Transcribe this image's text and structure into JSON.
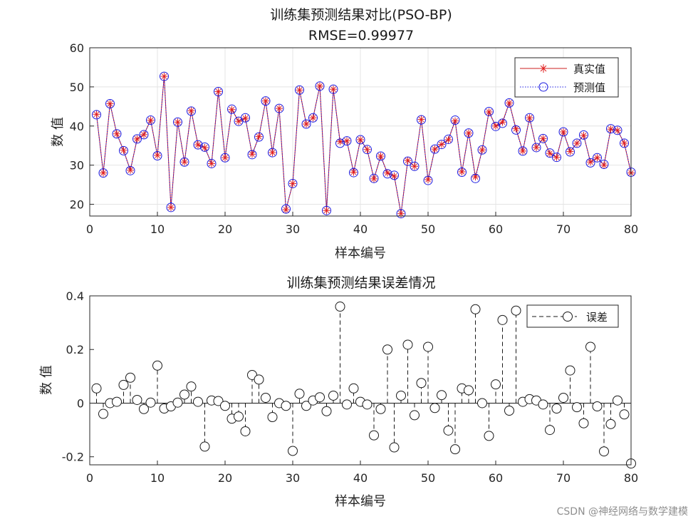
{
  "chart_data": [
    {
      "type": "line",
      "title": "训练集预测结果对比(PSO-BP)",
      "subtitle": "RMSE=0.99977",
      "xlabel": "样本编号",
      "ylabel": "数 值",
      "xlim": [
        0,
        80
      ],
      "ylim": [
        17,
        60
      ],
      "xticks": [
        "0",
        "10",
        "20",
        "30",
        "40",
        "50",
        "60",
        "70",
        "80"
      ],
      "yticks": [
        "20",
        "30",
        "40",
        "50",
        "60"
      ],
      "grid": true,
      "legend_position": "top-right",
      "x": [
        1,
        2,
        3,
        4,
        5,
        6,
        7,
        8,
        9,
        10,
        11,
        12,
        13,
        14,
        15,
        16,
        17,
        18,
        19,
        20,
        21,
        22,
        23,
        24,
        25,
        26,
        27,
        28,
        29,
        30,
        31,
        32,
        33,
        34,
        35,
        36,
        37,
        38,
        39,
        40,
        41,
        42,
        43,
        44,
        45,
        46,
        47,
        48,
        49,
        50,
        51,
        52,
        53,
        54,
        55,
        56,
        57,
        58,
        59,
        60,
        61,
        62,
        63,
        64,
        65,
        66,
        67,
        68,
        69,
        70,
        71,
        72,
        73,
        74,
        75,
        76,
        77,
        78,
        79,
        80
      ],
      "series": [
        {
          "name": "真实值",
          "color": "#e02020",
          "values": [
            43.0,
            28.0,
            45.7,
            38.0,
            33.8,
            28.7,
            36.7,
            37.8,
            41.5,
            32.5,
            52.7,
            19.2,
            41.0,
            30.8,
            43.9,
            35.2,
            34.5,
            30.4,
            48.8,
            31.9,
            44.2,
            41.2,
            42.0,
            32.8,
            37.3,
            46.4,
            33.2,
            44.5,
            18.6,
            25.3,
            49.2,
            40.5,
            42.1,
            50.2,
            18.4,
            49.4,
            36.0,
            36.2,
            28.2,
            36.5,
            34.0,
            26.5,
            32.3,
            28.0,
            27.2,
            17.6,
            31.2,
            29.7,
            41.7,
            26.3,
            34.1,
            35.3,
            36.5,
            41.3,
            28.3,
            38.2,
            27.0,
            33.9,
            43.6,
            40.0,
            41.0,
            45.9,
            39.3,
            33.6,
            42.1,
            34.5,
            36.8,
            33.0,
            32.0,
            38.5,
            33.5,
            35.6,
            37.6,
            30.8,
            31.9,
            30.0,
            39.2,
            38.9,
            35.6,
            28.0
          ]
        },
        {
          "name": "预测值",
          "color": "#1a1ae0",
          "values": [
            42.9,
            28.0,
            45.7,
            38.0,
            33.7,
            28.6,
            36.7,
            37.8,
            41.5,
            32.4,
            52.7,
            19.2,
            41.0,
            30.8,
            43.8,
            35.2,
            34.6,
            30.4,
            48.8,
            31.9,
            44.3,
            41.2,
            42.1,
            32.7,
            37.2,
            46.4,
            33.2,
            44.5,
            18.8,
            25.3,
            49.2,
            40.5,
            42.1,
            50.2,
            18.4,
            49.4,
            35.6,
            36.2,
            28.1,
            36.5,
            34.0,
            26.6,
            32.3,
            27.8,
            27.4,
            17.6,
            31.0,
            29.7,
            41.6,
            26.1,
            34.1,
            35.3,
            36.6,
            41.5,
            28.2,
            38.2,
            26.6,
            33.9,
            43.7,
            39.9,
            40.7,
            45.9,
            39.0,
            33.6,
            42.1,
            34.5,
            36.8,
            33.1,
            32.0,
            38.5,
            33.4,
            35.6,
            37.7,
            30.6,
            31.9,
            30.2,
            39.3,
            38.9,
            35.6,
            28.2
          ]
        }
      ]
    },
    {
      "type": "scatter",
      "title": "训练集预测结果误差情况",
      "xlabel": "样本编号",
      "ylabel": "数 值",
      "xlim": [
        0,
        80
      ],
      "ylim": [
        -0.23,
        0.4
      ],
      "xticks": [
        "0",
        "10",
        "20",
        "30",
        "40",
        "50",
        "60",
        "70",
        "80"
      ],
      "yticks": [
        "-0.2",
        "0",
        "0.2",
        "0.4"
      ],
      "grid": false,
      "legend_position": "top-right",
      "x": [
        1,
        2,
        3,
        4,
        5,
        6,
        7,
        8,
        9,
        10,
        11,
        12,
        13,
        14,
        15,
        16,
        17,
        18,
        19,
        20,
        21,
        22,
        23,
        24,
        25,
        26,
        27,
        28,
        29,
        30,
        31,
        32,
        33,
        34,
        35,
        36,
        37,
        38,
        39,
        40,
        41,
        42,
        43,
        44,
        45,
        46,
        47,
        48,
        49,
        50,
        51,
        52,
        53,
        54,
        55,
        56,
        57,
        58,
        59,
        60,
        61,
        62,
        63,
        64,
        65,
        66,
        67,
        68,
        69,
        70,
        71,
        72,
        73,
        74,
        75,
        76,
        77,
        78,
        79,
        80
      ],
      "series": [
        {
          "name": "误差",
          "color": "#1a1a1a",
          "values": [
            0.055,
            -0.04,
            0.0,
            0.005,
            0.068,
            0.095,
            0.012,
            -0.022,
            0.002,
            0.14,
            -0.02,
            -0.012,
            0.002,
            0.032,
            0.062,
            0.005,
            -0.162,
            0.01,
            0.008,
            -0.01,
            -0.058,
            -0.05,
            -0.105,
            0.105,
            0.088,
            0.02,
            -0.052,
            0.0,
            -0.01,
            -0.178,
            0.035,
            -0.01,
            0.01,
            0.022,
            -0.03,
            0.028,
            0.36,
            -0.005,
            0.055,
            0.005,
            -0.005,
            -0.12,
            -0.022,
            0.2,
            -0.165,
            0.028,
            0.218,
            -0.045,
            0.075,
            0.21,
            -0.018,
            0.03,
            -0.102,
            -0.172,
            0.055,
            0.048,
            0.35,
            0.0,
            -0.122,
            0.07,
            0.31,
            -0.028,
            0.345,
            0.005,
            0.015,
            0.01,
            -0.005,
            -0.1,
            -0.02,
            0.02,
            0.122,
            -0.015,
            -0.075,
            0.21,
            -0.012,
            -0.18,
            -0.078,
            0.01,
            -0.042,
            -0.225
          ]
        }
      ]
    }
  ],
  "watermark": "CSDN @神经网络与数学建模"
}
